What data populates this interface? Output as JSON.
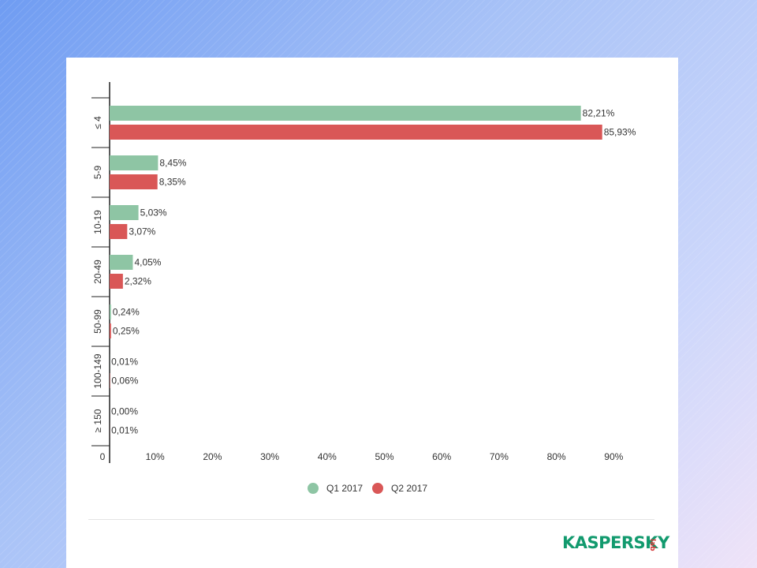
{
  "chart_data": {
    "type": "bar",
    "orientation": "horizontal",
    "categories": [
      "≤ 4",
      "5-9",
      "10-19",
      "20-49",
      "50-99",
      "100-149",
      "≥ 150"
    ],
    "series": [
      {
        "name": "Q1 2017",
        "color": "#8ec5a4",
        "values": [
          82.21,
          8.45,
          5.03,
          4.05,
          0.24,
          0.01,
          0.0
        ],
        "labels": [
          "82,21%",
          "8,45%",
          "5,03%",
          "4,05%",
          "0,24%",
          "0,01%",
          "0,00%"
        ]
      },
      {
        "name": "Q2 2017",
        "color": "#d95757",
        "values": [
          85.93,
          8.35,
          3.07,
          2.32,
          0.25,
          0.06,
          0.01
        ],
        "labels": [
          "85,93%",
          "8,35%",
          "3,07%",
          "2,32%",
          "0,25%",
          "0,06%",
          "0,01%"
        ]
      }
    ],
    "xlim": [
      0,
      90
    ],
    "xticks": [
      0,
      10,
      20,
      30,
      40,
      50,
      60,
      70,
      80,
      90
    ],
    "xtick_labels": [
      "0",
      "10%",
      "20%",
      "30%",
      "40%",
      "50%",
      "60%",
      "70%",
      "80%",
      "90%"
    ],
    "legend_position": "bottom-center",
    "grid": false
  },
  "brand": {
    "logo_text": "KASPERSKY",
    "logo_sub": "lab",
    "color": "#129a6e",
    "sub_color": "#d53a3a"
  }
}
